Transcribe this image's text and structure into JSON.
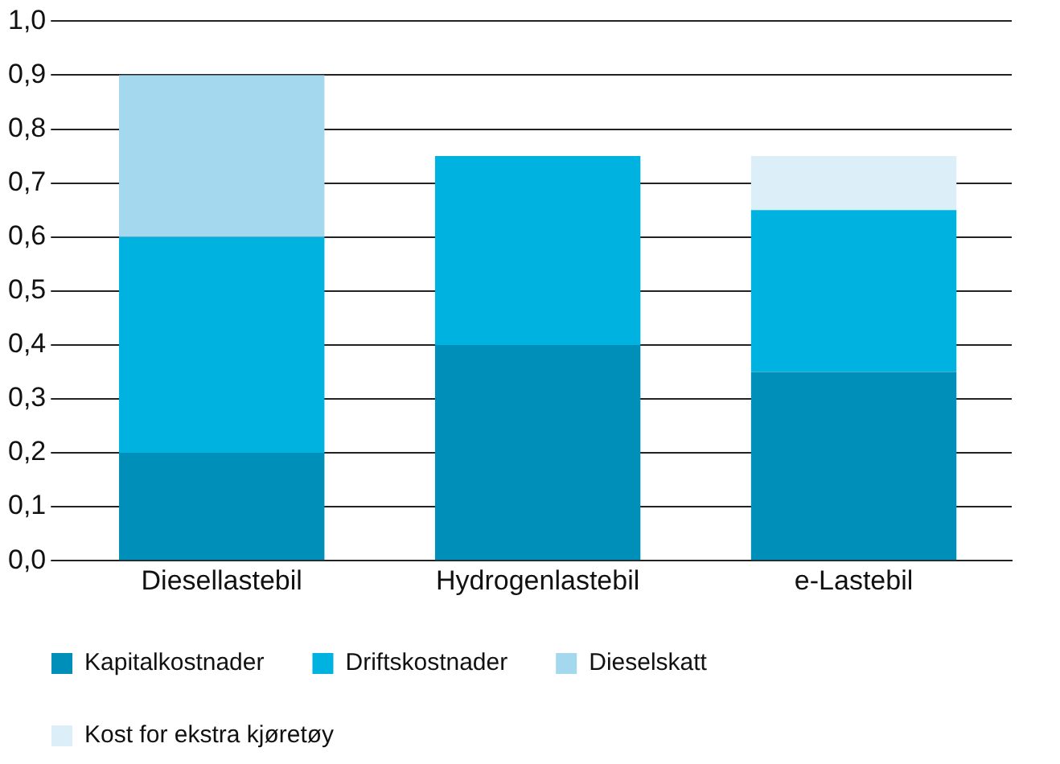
{
  "chart_data": {
    "type": "bar",
    "stacked": true,
    "categories": [
      "Diesellastebil",
      "Hydrogenlastebil",
      "e-Lastebil"
    ],
    "series": [
      {
        "name": "Kapitalkostnader",
        "color": "#008fb8",
        "values": [
          0.2,
          0.4,
          0.35
        ]
      },
      {
        "name": "Driftskostnader",
        "color": "#00b2e0",
        "values": [
          0.4,
          0.35,
          0.3
        ]
      },
      {
        "name": "Dieselskatt",
        "color": "#a3d8ef",
        "values": [
          0.3,
          null,
          null
        ]
      },
      {
        "name": "Kost for ekstra kjøretøy",
        "color": "#dceff9",
        "values": [
          null,
          null,
          0.1
        ]
      }
    ],
    "ylim": [
      0,
      1
    ],
    "yticks": [
      {
        "value": 0,
        "label": "0,0"
      },
      {
        "value": 0.1,
        "label": "0,1"
      },
      {
        "value": 0.2,
        "label": "0,2"
      },
      {
        "value": 0.3,
        "label": "0,3"
      },
      {
        "value": 0.4,
        "label": "0,4"
      },
      {
        "value": 0.5,
        "label": "0,5"
      },
      {
        "value": 0.6,
        "label": "0,6"
      },
      {
        "value": 0.7,
        "label": "0,7"
      },
      {
        "value": 0.8,
        "label": "0,8"
      },
      {
        "value": 0.9,
        "label": "0,9"
      },
      {
        "value": 1,
        "label": "1,0"
      }
    ],
    "grid": "y",
    "legend": "bottom left"
  }
}
